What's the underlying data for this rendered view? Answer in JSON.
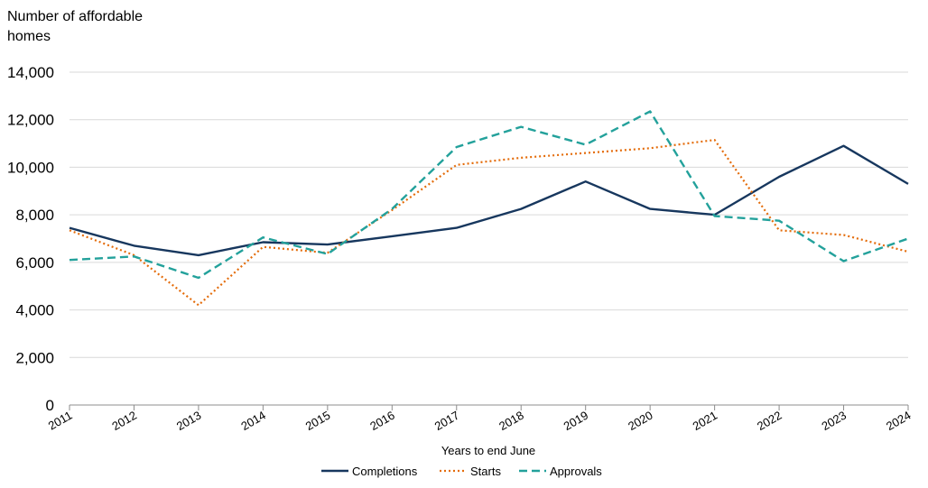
{
  "chart_data": {
    "type": "line",
    "ylabel": "Number of affordable homes",
    "xlabel": "Years to end June",
    "categories": [
      "2011",
      "2012",
      "2013",
      "2014",
      "2015",
      "2016",
      "2017",
      "2018",
      "2019",
      "2020",
      "2021",
      "2022",
      "2023",
      "2024"
    ],
    "ylim": [
      0,
      14000
    ],
    "yticks": [
      0,
      2000,
      4000,
      6000,
      8000,
      10000,
      12000,
      14000
    ],
    "ytick_labels": [
      "0",
      "2,000",
      "4,000",
      "6,000",
      "8,000",
      "10,000",
      "12,000",
      "14,000"
    ],
    "grid": true,
    "legend_position": "bottom",
    "series": [
      {
        "name": "Completions",
        "color": "#17375e",
        "style": "solid",
        "values": [
          7450,
          6700,
          6300,
          6850,
          6750,
          7100,
          7450,
          8250,
          9400,
          8250,
          8000,
          9600,
          10900,
          9300
        ]
      },
      {
        "name": "Starts",
        "color": "#e46c0a",
        "style": "dotted",
        "values": [
          7350,
          6300,
          4200,
          6650,
          6400,
          8200,
          10100,
          10400,
          10600,
          10800,
          11150,
          7350,
          7150,
          6450
        ]
      },
      {
        "name": "Approvals",
        "color": "#23a19b",
        "style": "dashed",
        "values": [
          6100,
          6250,
          5350,
          7050,
          6350,
          8250,
          10850,
          11700,
          10950,
          12350,
          7950,
          7750,
          6050,
          7000
        ]
      }
    ]
  }
}
